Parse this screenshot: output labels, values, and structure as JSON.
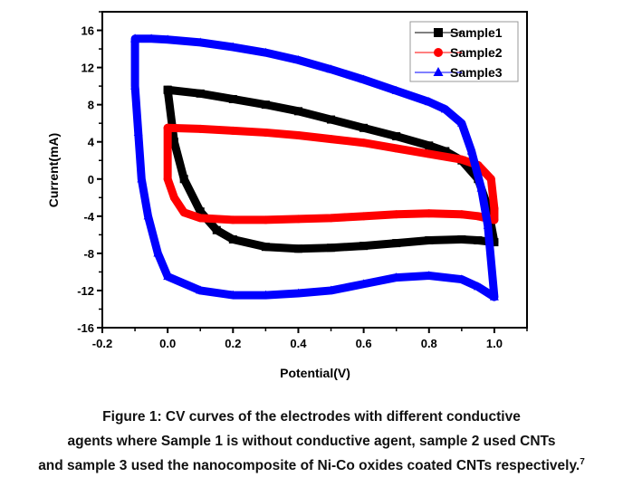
{
  "chart_data": {
    "type": "scatter",
    "xlabel": "Potential(V)",
    "ylabel": "Current(mA)",
    "xlim": [
      -0.2,
      1.1
    ],
    "ylim": [
      -16,
      18
    ],
    "xticks": [
      -0.2,
      0.0,
      0.2,
      0.4,
      0.6,
      0.8,
      1.0
    ],
    "xtick_labels": [
      "-0.2",
      "0.0",
      "0.2",
      "0.4",
      "0.6",
      "0.8",
      "1.0"
    ],
    "yticks": [
      -16,
      -12,
      -8,
      -4,
      0,
      4,
      8,
      12,
      16
    ],
    "ytick_labels": [
      "-16",
      "-12",
      "-8",
      "-4",
      "0",
      "4",
      "8",
      "12",
      "16"
    ],
    "grid": false,
    "legend_position": "top-right",
    "series": [
      {
        "name": "Sample1",
        "color": "#000000",
        "marker": "square",
        "x": [
          0,
          0.1,
          0.2,
          0.3,
          0.4,
          0.5,
          0.6,
          0.7,
          0.8,
          0.85,
          0.9,
          0.95,
          0.98,
          1.0,
          0.95,
          0.9,
          0.8,
          0.7,
          0.6,
          0.5,
          0.4,
          0.3,
          0.2,
          0.15,
          0.1,
          0.05,
          0.02,
          0
        ],
        "y": [
          9.6,
          9.2,
          8.6,
          8.0,
          7.3,
          6.4,
          5.5,
          4.6,
          3.6,
          3.0,
          2.0,
          0,
          -3,
          -6.8,
          -6.6,
          -6.5,
          -6.6,
          -6.9,
          -7.2,
          -7.4,
          -7.5,
          -7.3,
          -6.5,
          -5.5,
          -3.5,
          0,
          4,
          9.6
        ]
      },
      {
        "name": "Sample2",
        "color": "#ff0000",
        "marker": "circle",
        "x": [
          0,
          0.1,
          0.2,
          0.3,
          0.4,
          0.5,
          0.6,
          0.7,
          0.8,
          0.9,
          0.95,
          0.99,
          1.0,
          1.0,
          0.95,
          0.9,
          0.8,
          0.7,
          0.6,
          0.5,
          0.4,
          0.3,
          0.2,
          0.1,
          0.05,
          0.02,
          0,
          0
        ],
        "y": [
          5.5,
          5.4,
          5.2,
          5.0,
          4.7,
          4.3,
          3.9,
          3.3,
          2.7,
          2.1,
          1.5,
          0,
          -3.2,
          -4.4,
          -4.0,
          -3.8,
          -3.7,
          -3.8,
          -4.0,
          -4.2,
          -4.3,
          -4.4,
          -4.4,
          -4.2,
          -3.6,
          -2,
          0,
          5.5
        ]
      },
      {
        "name": "Sample3",
        "color": "#0000ff",
        "marker": "triangle",
        "x": [
          -0.1,
          -0.05,
          0,
          0.1,
          0.2,
          0.3,
          0.4,
          0.5,
          0.6,
          0.7,
          0.8,
          0.85,
          0.9,
          0.93,
          0.96,
          0.98,
          1.0,
          0.95,
          0.9,
          0.8,
          0.7,
          0.6,
          0.5,
          0.4,
          0.3,
          0.2,
          0.1,
          0.0,
          -0.03,
          -0.06,
          -0.08,
          -0.09,
          -0.1,
          -0.1
        ],
        "y": [
          15.1,
          15.1,
          15.0,
          14.7,
          14.2,
          13.6,
          12.8,
          11.8,
          10.7,
          9.5,
          8.3,
          7.5,
          6.0,
          3,
          -1,
          -5,
          -12.7,
          -11.6,
          -10.8,
          -10.4,
          -10.6,
          -11.3,
          -12.0,
          -12.3,
          -12.5,
          -12.5,
          -12.0,
          -10.5,
          -8,
          -4,
          0,
          5,
          10,
          15.1
        ]
      }
    ]
  },
  "caption": {
    "line1": "Figure 1: CV curves of the electrodes with different conductive",
    "line2": "agents where Sample 1 is without conductive agent, sample 2 used CNTs",
    "line3": "and sample 3 used the nanocomposite of Ni-Co oxides coated CNTs respectively.",
    "ref": "7"
  }
}
